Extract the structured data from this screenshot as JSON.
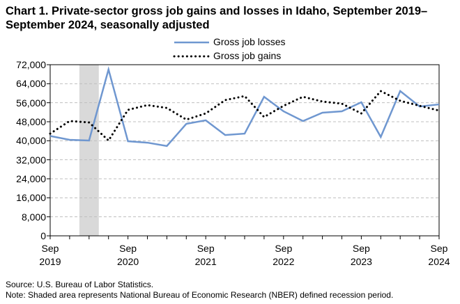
{
  "chart_data": {
    "type": "line",
    "title": "Chart 1. Private-sector gross job gains and losses in Idaho, September 2019–September 2024, seasonally adjusted",
    "categories": [
      "Sep\n2019",
      null,
      null,
      null,
      "Sep\n2020",
      null,
      null,
      null,
      "Sep\n2021",
      null,
      null,
      null,
      "Sep\n2022",
      null,
      null,
      null,
      "Sep\n2023",
      null,
      null,
      null,
      "Sep\n2024"
    ],
    "series": [
      {
        "name": "Gross job losses",
        "color": "#6f97d0",
        "style": "solid",
        "values": [
          42000,
          40400,
          40100,
          70000,
          39800,
          39200,
          37800,
          47100,
          48600,
          42400,
          43000,
          58500,
          52400,
          48300,
          51800,
          52400,
          56200,
          41600,
          60900,
          54400,
          55300
        ]
      },
      {
        "name": "Gross job gains",
        "color": "#000000",
        "style": "dotted",
        "values": [
          43000,
          48300,
          47700,
          40100,
          53000,
          55000,
          53800,
          48900,
          51500,
          57100,
          58800,
          50000,
          54700,
          58500,
          56500,
          55600,
          51500,
          60900,
          56800,
          54700,
          52700
        ]
      }
    ],
    "shaded_region": [
      1.5,
      2.5
    ],
    "ylim": [
      0,
      72000
    ],
    "yticks": [
      0,
      {
        "value": 8000,
        "label": "8,000"
      },
      {
        "value": 16000,
        "label": "16,000"
      },
      {
        "value": 24000,
        "label": "24,000"
      },
      {
        "value": 32000,
        "label": "32,000"
      },
      {
        "value": 40000,
        "label": "40,000"
      },
      {
        "value": 48000,
        "label": "48,000"
      },
      {
        "value": 56000,
        "label": "56,000"
      },
      {
        "value": 64000,
        "label": "64,000"
      },
      {
        "value": 72000,
        "label": "72,000"
      }
    ],
    "grid": true,
    "legend": "top",
    "source": "Source: U.S. Bureau of Labor Statistics.",
    "note": "Note: Shaded area represents National Bureau of Economic Research (NBER) defined  recession period."
  }
}
